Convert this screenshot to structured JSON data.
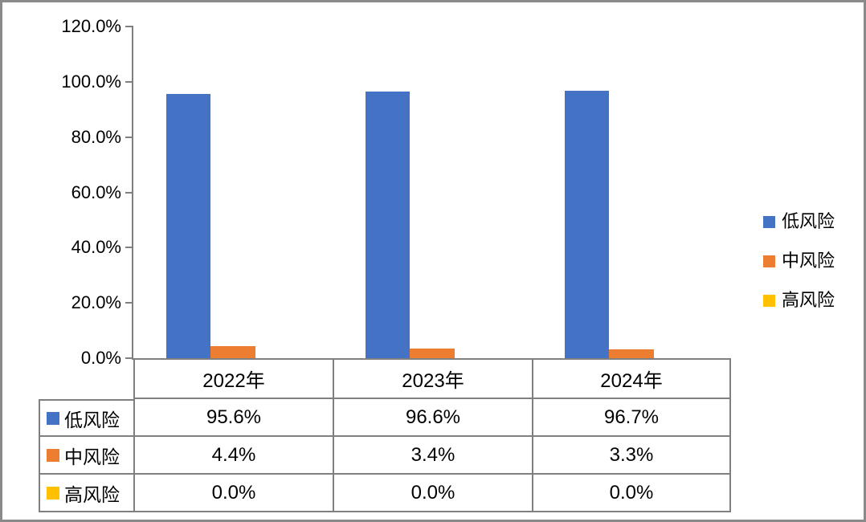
{
  "chart_data": {
    "type": "bar",
    "title": "",
    "xlabel": "",
    "ylabel": "",
    "categories": [
      "2022年",
      "2023年",
      "2024年"
    ],
    "series": [
      {
        "name": "低风险",
        "color": "#4472C4",
        "values": [
          95.6,
          96.6,
          96.7
        ],
        "value_labels": [
          "95.6%",
          "96.6%",
          "96.7%"
        ]
      },
      {
        "name": "中风险",
        "color": "#ED7D31",
        "values": [
          4.4,
          3.4,
          3.3
        ],
        "value_labels": [
          "4.4%",
          "3.4%",
          "3.3%"
        ]
      },
      {
        "name": "高风险",
        "color": "#FFC000",
        "values": [
          0.0,
          0.0,
          0.0
        ],
        "value_labels": [
          "0.0%",
          "0.0%",
          "0.0%"
        ]
      }
    ],
    "ylim": [
      0,
      120
    ],
    "y_ticks": [
      {
        "label": "120.0%",
        "value": 120
      },
      {
        "label": "100.0%",
        "value": 100
      },
      {
        "label": "80.0%",
        "value": 80
      },
      {
        "label": "60.0%",
        "value": 60
      },
      {
        "label": "40.0%",
        "value": 40
      },
      {
        "label": "20.0%",
        "value": 20
      },
      {
        "label": "0.0%",
        "value": 0
      }
    ],
    "grid": false,
    "legend_position": "right",
    "has_data_table": true
  },
  "colors": {
    "axis_line": "#808080",
    "table_border": "#808080",
    "frame_border": "#8A8A8A",
    "background": "#FFFFFF",
    "text": "#000000",
    "series_low": "#4472C4",
    "series_mid": "#ED7D31",
    "series_high": "#FFC000"
  }
}
